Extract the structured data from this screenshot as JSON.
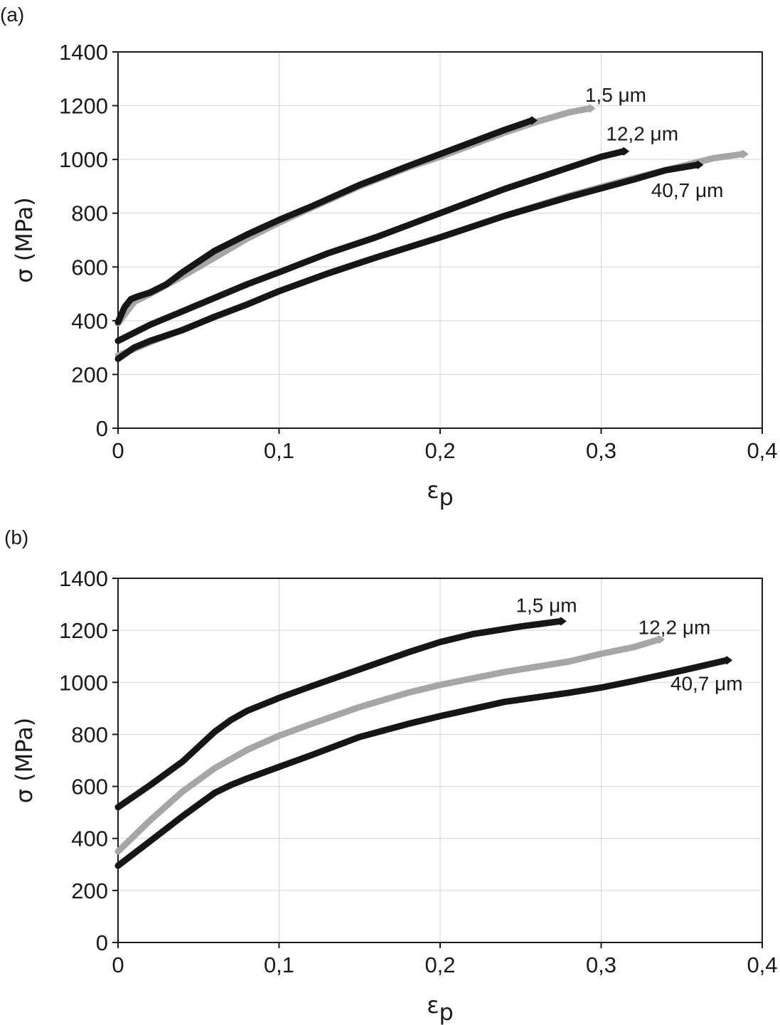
{
  "chart_data": [
    {
      "type": "line",
      "panel_label": "(a)",
      "xlabel": "ε",
      "xlabel_sub": "p",
      "ylabel": "σ (MPa)",
      "xlim": [
        0,
        0.4
      ],
      "ylim": [
        0,
        1400
      ],
      "xticks": [
        "0",
        "0,1",
        "0,2",
        "0,3",
        "0,4"
      ],
      "xtick_values": [
        0,
        0.1,
        0.2,
        0.3,
        0.4
      ],
      "yticks": [
        "0",
        "200",
        "400",
        "600",
        "800",
        "1000",
        "1200",
        "1400"
      ],
      "ytick_values": [
        0,
        200,
        400,
        600,
        800,
        1000,
        1200,
        1400
      ],
      "grid": true,
      "colors": {
        "dark": "#161616",
        "light": "#a6a6a6",
        "grid": "#d4d4d4"
      },
      "annotations": [
        {
          "text": "1,5 μm",
          "x": 0.29,
          "y": 1215
        },
        {
          "text": "12,2 μm",
          "x": 0.303,
          "y": 1070
        },
        {
          "text": "40,7 μm",
          "x": 0.331,
          "y": 860
        }
      ],
      "series": [
        {
          "color": "light",
          "x": [
            0,
            0.005,
            0.01,
            0.02,
            0.04,
            0.06,
            0.08,
            0.1,
            0.12,
            0.15,
            0.18,
            0.2,
            0.22,
            0.24,
            0.26,
            0.28,
            0.293
          ],
          "y": [
            390,
            430,
            470,
            500,
            565,
            635,
            705,
            765,
            820,
            900,
            970,
            1010,
            1055,
            1100,
            1140,
            1175,
            1190
          ]
        },
        {
          "color": "dark",
          "x": [
            0,
            0.004,
            0.008,
            0.012,
            0.02,
            0.03,
            0.04,
            0.06,
            0.08,
            0.1,
            0.12,
            0.15,
            0.18,
            0.2,
            0.22,
            0.24,
            0.257
          ],
          "y": [
            395,
            450,
            480,
            490,
            505,
            535,
            580,
            660,
            720,
            775,
            825,
            905,
            975,
            1020,
            1065,
            1110,
            1145
          ]
        },
        {
          "color": "dark",
          "x": [
            0,
            0.02,
            0.05,
            0.08,
            0.1,
            0.13,
            0.16,
            0.2,
            0.24,
            0.27,
            0.3,
            0.314
          ],
          "y": [
            325,
            385,
            460,
            535,
            580,
            650,
            710,
            800,
            890,
            950,
            1010,
            1030
          ]
        },
        {
          "color": "light",
          "x": [
            0,
            0.02,
            0.05,
            0.08,
            0.1,
            0.13,
            0.16,
            0.2,
            0.24,
            0.28,
            0.32,
            0.35,
            0.37,
            0.388
          ],
          "y": [
            270,
            320,
            390,
            460,
            510,
            575,
            635,
            710,
            790,
            865,
            930,
            975,
            1005,
            1020
          ]
        },
        {
          "color": "dark",
          "x": [
            0,
            0.01,
            0.02,
            0.04,
            0.06,
            0.08,
            0.1,
            0.13,
            0.16,
            0.2,
            0.24,
            0.28,
            0.32,
            0.34,
            0.36
          ],
          "y": [
            258,
            300,
            325,
            365,
            415,
            460,
            510,
            575,
            635,
            710,
            790,
            860,
            925,
            960,
            980
          ]
        }
      ]
    },
    {
      "type": "line",
      "panel_label": "(b)",
      "xlabel": "ε",
      "xlabel_sub": "p",
      "ylabel": "σ (MPa)",
      "xlim": [
        0,
        0.4
      ],
      "ylim": [
        0,
        1400
      ],
      "xticks": [
        "0",
        "0,1",
        "0,2",
        "0,3",
        "0,4"
      ],
      "xtick_values": [
        0,
        0.1,
        0.2,
        0.3,
        0.4
      ],
      "yticks": [
        "0",
        "200",
        "400",
        "600",
        "800",
        "1000",
        "1200",
        "1400"
      ],
      "ytick_values": [
        0,
        200,
        400,
        600,
        800,
        1000,
        1200,
        1400
      ],
      "grid": true,
      "colors": {
        "dark": "#161616",
        "light": "#a6a6a6",
        "grid": "#d4d4d4"
      },
      "annotations": [
        {
          "text": "1,5 μm",
          "x": 0.247,
          "y": 1270
        },
        {
          "text": "12,2 μm",
          "x": 0.323,
          "y": 1185
        },
        {
          "text": "40,7 μm",
          "x": 0.343,
          "y": 970
        }
      ],
      "series": [
        {
          "color": "dark",
          "x": [
            0,
            0.02,
            0.04,
            0.06,
            0.07,
            0.08,
            0.1,
            0.12,
            0.15,
            0.18,
            0.2,
            0.22,
            0.25,
            0.275
          ],
          "y": [
            520,
            605,
            695,
            810,
            855,
            890,
            940,
            985,
            1050,
            1115,
            1155,
            1185,
            1215,
            1235
          ]
        },
        {
          "color": "light",
          "x": [
            0,
            0.02,
            0.04,
            0.06,
            0.08,
            0.1,
            0.12,
            0.15,
            0.18,
            0.2,
            0.24,
            0.28,
            0.3,
            0.32,
            0.336
          ],
          "y": [
            350,
            470,
            580,
            670,
            740,
            795,
            840,
            905,
            960,
            990,
            1040,
            1080,
            1110,
            1135,
            1165
          ]
        },
        {
          "color": "dark",
          "x": [
            0,
            0.02,
            0.04,
            0.06,
            0.07,
            0.08,
            0.1,
            0.12,
            0.15,
            0.18,
            0.2,
            0.24,
            0.28,
            0.3,
            0.32,
            0.35,
            0.378
          ],
          "y": [
            295,
            390,
            485,
            575,
            605,
            630,
            675,
            720,
            790,
            840,
            870,
            925,
            960,
            980,
            1005,
            1045,
            1085
          ]
        }
      ]
    }
  ]
}
